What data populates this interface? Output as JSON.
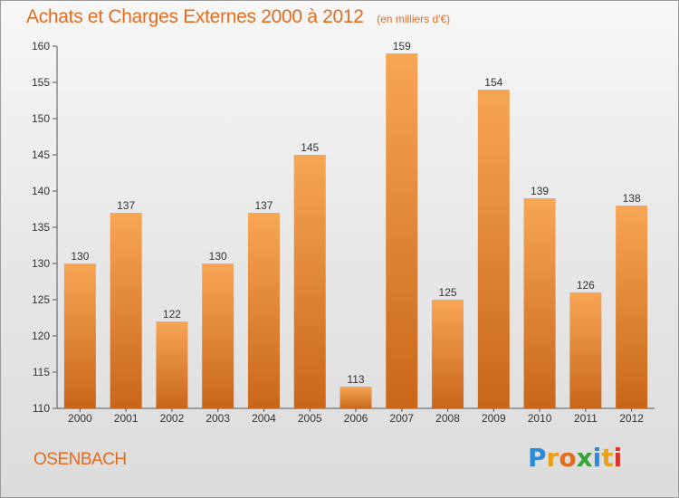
{
  "header": {
    "title": "Achats et Charges Externes 2000 à 2012",
    "subtitle": "(en milliers d'€)"
  },
  "footer": {
    "city": "OSENBACH",
    "logo": [
      "P",
      "r",
      "o",
      "x",
      "i",
      "t",
      "i"
    ]
  },
  "colors": {
    "accent": "#e36c1e",
    "bar_top": "#f7a655",
    "bar_bottom": "#c8661a"
  },
  "chart_data": {
    "type": "bar",
    "title": "Achats et Charges Externes 2000 à 2012",
    "subtitle": "(en milliers d'€)",
    "xlabel": "",
    "ylabel": "",
    "categories": [
      "2000",
      "2001",
      "2002",
      "2003",
      "2004",
      "2005",
      "2006",
      "2007",
      "2008",
      "2009",
      "2010",
      "2011",
      "2012"
    ],
    "values": [
      130,
      137,
      122,
      130,
      137,
      145,
      113,
      159,
      125,
      154,
      139,
      126,
      138
    ],
    "ylim": [
      110,
      160
    ],
    "yticks": [
      110,
      115,
      120,
      125,
      130,
      135,
      140,
      145,
      150,
      155,
      160
    ],
    "grid": false,
    "data_labels": true
  }
}
